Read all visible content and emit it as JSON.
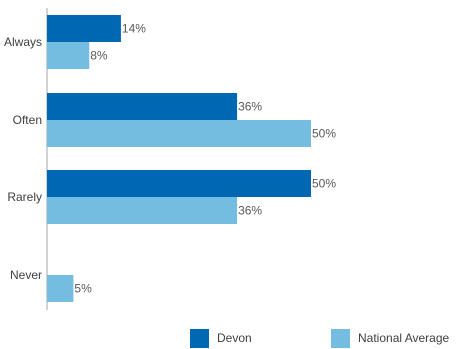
{
  "chart_data": {
    "type": "bar",
    "orientation": "horizontal",
    "categories": [
      "Always",
      "Often",
      "Rarely",
      "Never"
    ],
    "series": [
      {
        "name": "Devon",
        "values": [
          14,
          36,
          50,
          null
        ],
        "labels": [
          "14%",
          "36%",
          "50%",
          ""
        ],
        "color": "#0068b3"
      },
      {
        "name": "National Average",
        "values": [
          8,
          50,
          36,
          5
        ],
        "labels": [
          "8%",
          "50%",
          "36%",
          "5%"
        ],
        "color": "#75bde0"
      }
    ],
    "value_unit": "%",
    "xlim": [
      0,
      50
    ],
    "grid": false,
    "legend": "bottom"
  }
}
